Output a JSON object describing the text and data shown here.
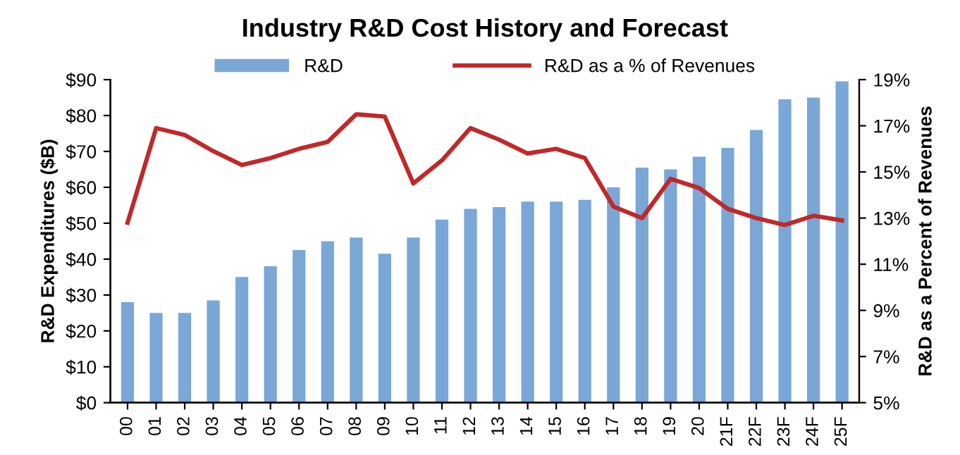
{
  "chart_data": {
    "type": "bar",
    "title": "Industry R&D Cost History and Forecast",
    "ylabel": "R&D Expenditures ($B)",
    "y2label": "R&D as a Percent of Revenues",
    "categories": [
      "00",
      "01",
      "02",
      "03",
      "04",
      "05",
      "06",
      "07",
      "08",
      "09",
      "10",
      "11",
      "12",
      "13",
      "14",
      "15",
      "16",
      "17",
      "18",
      "19",
      "20",
      "21F",
      "22F",
      "23F",
      "24F",
      "25F"
    ],
    "series": [
      {
        "name": "R&D",
        "color": "#7aa7d6",
        "values": [
          28,
          25,
          25,
          28.5,
          35,
          38,
          42.5,
          45,
          46,
          41.5,
          46,
          51,
          54,
          54.5,
          56,
          56,
          56.5,
          60,
          65.5,
          65,
          68.5,
          71,
          76,
          84.5,
          85,
          89.5
        ]
      },
      {
        "name": "R&D as a % of Revenues",
        "type": "line",
        "axis": "y2",
        "color": "#c0282a",
        "values": [
          12.8,
          16.9,
          16.6,
          15.9,
          15.3,
          15.6,
          16.0,
          16.3,
          17.5,
          17.4,
          14.5,
          15.5,
          16.9,
          16.4,
          15.8,
          16.0,
          15.6,
          13.5,
          13.0,
          14.7,
          14.3,
          13.4,
          13.0,
          12.7,
          13.1,
          12.9
        ]
      }
    ],
    "ylim": [
      0,
      90
    ],
    "yticks": [
      {
        "value": 0,
        "label": "$0"
      },
      {
        "value": 10,
        "label": "$10"
      },
      {
        "value": 20,
        "label": "$20"
      },
      {
        "value": 30,
        "label": "$30"
      },
      {
        "value": 40,
        "label": "$40"
      },
      {
        "value": 50,
        "label": "$50"
      },
      {
        "value": 60,
        "label": "$60"
      },
      {
        "value": 70,
        "label": "$70"
      },
      {
        "value": 80,
        "label": "$80"
      },
      {
        "value": 90,
        "label": "$90"
      }
    ],
    "y2lim": [
      5,
      19
    ],
    "y2ticks": [
      {
        "value": 5,
        "label": "5%"
      },
      {
        "value": 7,
        "label": "7%"
      },
      {
        "value": 9,
        "label": "9%"
      },
      {
        "value": 11,
        "label": "11%"
      },
      {
        "value": 13,
        "label": "13%"
      },
      {
        "value": 15,
        "label": "15%"
      },
      {
        "value": 17,
        "label": "17%"
      },
      {
        "value": 19,
        "label": "19%"
      }
    ],
    "grid": false,
    "legend": "top",
    "marker": "none",
    "line_style": "solid"
  }
}
